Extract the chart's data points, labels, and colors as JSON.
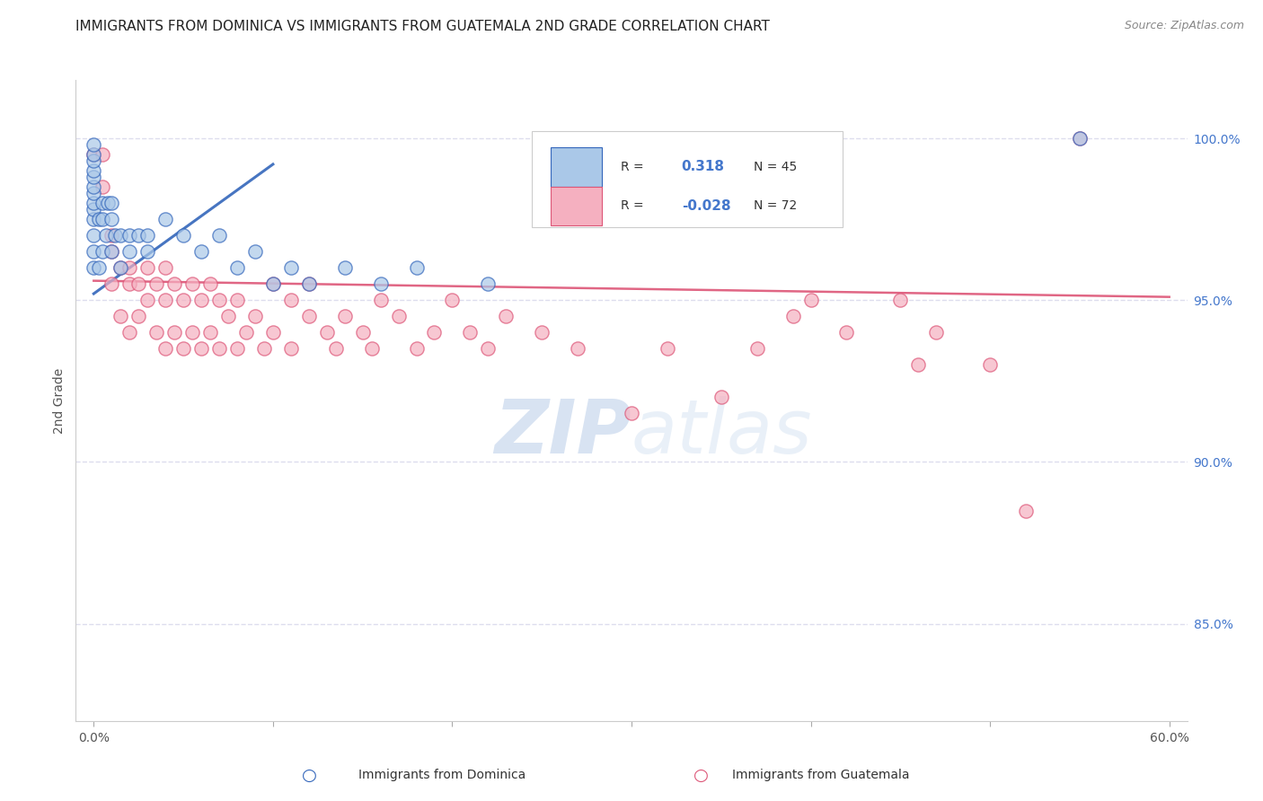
{
  "title": "IMMIGRANTS FROM DOMINICA VS IMMIGRANTS FROM GUATEMALA 2ND GRADE CORRELATION CHART",
  "source": "Source: ZipAtlas.com",
  "ylabel": "2nd Grade",
  "watermark": "ZIPatlas",
  "dominica": {
    "label": "Immigrants from Dominica",
    "R": 0.318,
    "N": 45,
    "color": "#aac8e8",
    "edge_color": "#3366bb",
    "x": [
      0.0,
      0.0,
      0.0,
      0.0,
      0.0,
      0.0,
      0.0,
      0.0,
      0.0,
      0.0,
      0.0,
      0.0,
      0.0,
      0.3,
      0.3,
      0.5,
      0.5,
      0.5,
      0.7,
      0.8,
      1.0,
      1.0,
      1.0,
      1.2,
      1.5,
      1.5,
      2.0,
      2.0,
      2.5,
      3.0,
      3.0,
      4.0,
      5.0,
      6.0,
      7.0,
      8.0,
      9.0,
      10.0,
      11.0,
      12.0,
      14.0,
      16.0,
      18.0,
      22.0,
      55.0
    ],
    "y": [
      96.0,
      96.5,
      97.0,
      97.5,
      97.8,
      98.0,
      98.3,
      98.5,
      98.8,
      99.0,
      99.3,
      99.5,
      99.8,
      96.0,
      97.5,
      96.5,
      97.5,
      98.0,
      97.0,
      98.0,
      96.5,
      97.5,
      98.0,
      97.0,
      96.0,
      97.0,
      96.5,
      97.0,
      97.0,
      96.5,
      97.0,
      97.5,
      97.0,
      96.5,
      97.0,
      96.0,
      96.5,
      95.5,
      96.0,
      95.5,
      96.0,
      95.5,
      96.0,
      95.5,
      100.0
    ],
    "trend_x": [
      0.0,
      10.0
    ],
    "trend_y": [
      95.2,
      99.2
    ]
  },
  "guatemala": {
    "label": "Immigrants from Guatemala",
    "R": -0.028,
    "N": 72,
    "color": "#f5b0c0",
    "edge_color": "#dd5577",
    "x": [
      0.0,
      0.5,
      0.5,
      1.0,
      1.0,
      1.0,
      1.5,
      1.5,
      2.0,
      2.0,
      2.0,
      2.5,
      2.5,
      3.0,
      3.0,
      3.5,
      3.5,
      4.0,
      4.0,
      4.0,
      4.5,
      4.5,
      5.0,
      5.0,
      5.5,
      5.5,
      6.0,
      6.0,
      6.5,
      6.5,
      7.0,
      7.0,
      7.5,
      8.0,
      8.0,
      8.5,
      9.0,
      9.5,
      10.0,
      10.0,
      11.0,
      11.0,
      12.0,
      12.0,
      13.0,
      13.5,
      14.0,
      15.0,
      15.5,
      16.0,
      17.0,
      18.0,
      19.0,
      20.0,
      21.0,
      22.0,
      23.0,
      25.0,
      27.0,
      30.0,
      32.0,
      35.0,
      37.0,
      39.0,
      40.0,
      42.0,
      45.0,
      46.0,
      47.0,
      50.0,
      52.0,
      55.0
    ],
    "y": [
      99.5,
      98.5,
      99.5,
      95.5,
      96.5,
      97.0,
      94.5,
      96.0,
      94.0,
      95.5,
      96.0,
      94.5,
      95.5,
      95.0,
      96.0,
      94.0,
      95.5,
      93.5,
      95.0,
      96.0,
      94.0,
      95.5,
      93.5,
      95.0,
      94.0,
      95.5,
      93.5,
      95.0,
      94.0,
      95.5,
      93.5,
      95.0,
      94.5,
      93.5,
      95.0,
      94.0,
      94.5,
      93.5,
      94.0,
      95.5,
      93.5,
      95.0,
      94.5,
      95.5,
      94.0,
      93.5,
      94.5,
      94.0,
      93.5,
      95.0,
      94.5,
      93.5,
      94.0,
      95.0,
      94.0,
      93.5,
      94.5,
      94.0,
      93.5,
      91.5,
      93.5,
      92.0,
      93.5,
      94.5,
      95.0,
      94.0,
      95.0,
      93.0,
      94.0,
      93.0,
      88.5,
      100.0
    ],
    "trend_x": [
      0.0,
      60.0
    ],
    "trend_y": [
      95.6,
      95.1
    ]
  },
  "xlim": [
    -1.0,
    61.0
  ],
  "ylim": [
    82.0,
    101.8
  ],
  "right_yticks": [
    85.0,
    90.0,
    95.0,
    100.0
  ],
  "grid_color": "#ddddee",
  "background_color": "#ffffff",
  "legend_R_color": "#4477cc",
  "legend_N_color": "#333333",
  "dot_size": 120,
  "dot_alpha": 0.7
}
